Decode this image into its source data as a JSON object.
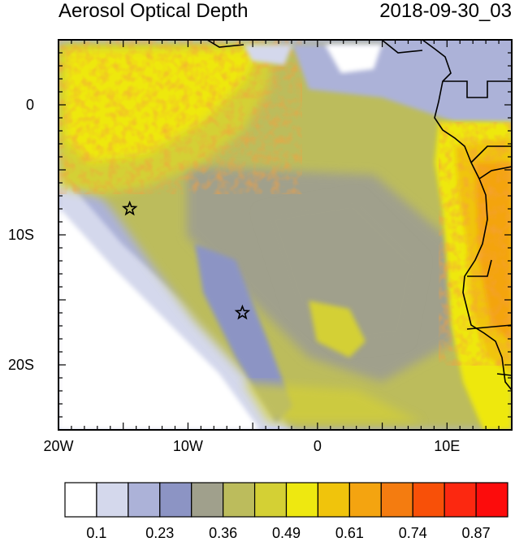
{
  "title_left": "Aerosol Optical Depth",
  "title_right": "2018-09-30_03",
  "map": {
    "lon_range": [
      -20,
      15
    ],
    "lat_range": [
      -25,
      5
    ],
    "x_ticks": [
      {
        "lon": -20,
        "label": "20W"
      },
      {
        "lon": -10,
        "label": "10W"
      },
      {
        "lon": 0,
        "label": "0"
      },
      {
        "lon": 10,
        "label": "10E"
      }
    ],
    "y_ticks": [
      {
        "lat": 0,
        "label": "0"
      },
      {
        "lat": -10,
        "label": "10S"
      },
      {
        "lat": -20,
        "label": "20S"
      }
    ],
    "markers": [
      {
        "name": "star-marker-1",
        "lon": -14.5,
        "lat": -8
      },
      {
        "name": "star-marker-2",
        "lon": -5.8,
        "lat": -16
      }
    ]
  },
  "colorbar": {
    "colors": [
      "#ffffff",
      "#d4d8ec",
      "#acb2d8",
      "#8c94c4",
      "#a0a08c",
      "#bcbc5c",
      "#d4d034",
      "#eee810",
      "#f0c40c",
      "#f4a410",
      "#f47c10",
      "#f85008",
      "#fc2810",
      "#fc0c0c"
    ],
    "labels": [
      "0.1",
      "0.23",
      "0.36",
      "0.49",
      "0.61",
      "0.74",
      "0.87"
    ]
  }
}
